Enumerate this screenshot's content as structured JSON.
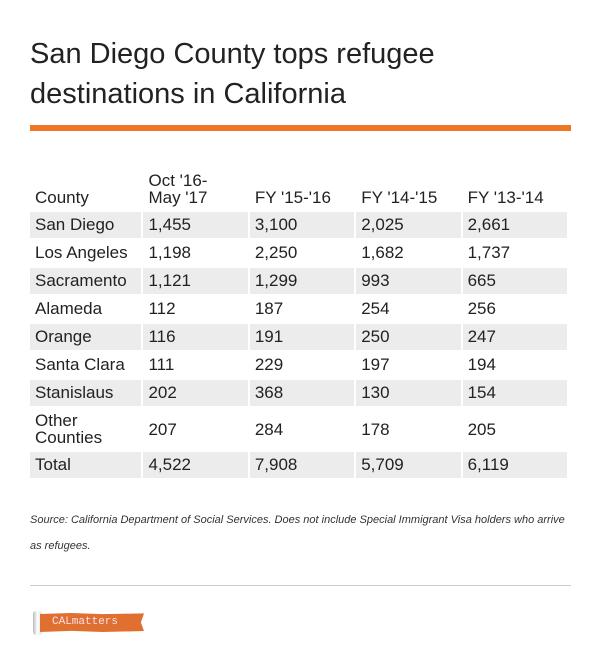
{
  "title": "San Diego County tops refugee destinations in California",
  "accent_color": "#ee7624",
  "table": {
    "headers": [
      "County",
      "Oct '16-\nMay '17",
      "FY '15-'16",
      "FY '14-'15",
      "FY '13-'14"
    ],
    "rows": [
      [
        "San Diego",
        "1,455",
        "3,100",
        "2,025",
        "2,661"
      ],
      [
        "Los Angeles",
        "1,198",
        "2,250",
        "1,682",
        "1,737"
      ],
      [
        "Sacramento",
        "1,121",
        "1,299",
        "993",
        "665"
      ],
      [
        "Alameda",
        "112",
        "187",
        "254",
        "256"
      ],
      [
        "Orange",
        "116",
        "191",
        "250",
        "247"
      ],
      [
        "Santa Clara",
        "111",
        "229",
        "197",
        "194"
      ],
      [
        "Stanislaus",
        "202",
        "368",
        "130",
        "154"
      ],
      [
        "Other Counties",
        "207",
        "284",
        "178",
        "205"
      ],
      [
        "Total",
        "4,522",
        "7,908",
        "5,709",
        "6,119"
      ]
    ]
  },
  "source": "Source: California Department of Social Services. Does not include Special Immigrant Visa holders who arrive as refugees.",
  "logo": "CALmatters"
}
